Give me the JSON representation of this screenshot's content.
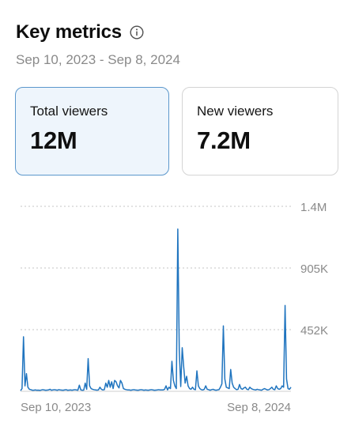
{
  "header": {
    "title": "Key metrics",
    "info_icon": "info-circle-icon",
    "date_range": "Sep 10, 2023 - Sep 8, 2024"
  },
  "cards": [
    {
      "label": "Total viewers",
      "value": "12M",
      "selected": true
    },
    {
      "label": "New viewers",
      "value": "7.2M",
      "selected": false
    }
  ],
  "colors": {
    "accent": "#1f74bf",
    "selected_card_bg": "#eef5fc",
    "selected_card_border": "#5b97cc",
    "muted_text": "#8a8a8a"
  },
  "chart_data": {
    "type": "line",
    "title": "",
    "xlabel": "",
    "ylabel": "",
    "x_tick_labels": [
      "Sep 10, 2023",
      "Sep 8, 2024"
    ],
    "y_tick_labels": [
      "452K",
      "905K",
      "1.4M"
    ],
    "y_ticks": [
      452000,
      905000,
      1357000
    ],
    "ylim": [
      0,
      1357000
    ],
    "grid": true,
    "legend": "none",
    "series": [
      {
        "color": "#1f74bf",
        "values": [
          5000,
          20000,
          400000,
          40000,
          130000,
          30000,
          15000,
          12000,
          8000,
          8000,
          10000,
          8000,
          9000,
          7000,
          9000,
          12000,
          10000,
          8000,
          9000,
          10000,
          15000,
          8000,
          10000,
          12000,
          10000,
          8000,
          12000,
          10000,
          9000,
          8000,
          10000,
          12000,
          8000,
          9000,
          10000,
          8000,
          10000,
          12000,
          10000,
          8000,
          45000,
          10000,
          8000,
          9000,
          60000,
          15000,
          240000,
          40000,
          20000,
          15000,
          12000,
          10000,
          9000,
          10000,
          30000,
          15000,
          10000,
          12000,
          60000,
          30000,
          80000,
          30000,
          70000,
          20000,
          80000,
          70000,
          40000,
          25000,
          80000,
          60000,
          20000,
          15000,
          12000,
          10000,
          10000,
          8000,
          10000,
          12000,
          10000,
          9000,
          8000,
          10000,
          12000,
          10000,
          8000,
          10000,
          9000,
          8000,
          10000,
          12000,
          10000,
          8000,
          9000,
          10000,
          12000,
          10000,
          10000,
          10000,
          15000,
          40000,
          10000,
          30000,
          20000,
          220000,
          80000,
          40000,
          20000,
          1190000,
          300000,
          35000,
          320000,
          180000,
          60000,
          110000,
          40000,
          20000,
          15000,
          30000,
          15000,
          12000,
          150000,
          40000,
          20000,
          12000,
          10000,
          15000,
          40000,
          15000,
          12000,
          8000,
          12000,
          15000,
          10000,
          8000,
          10000,
          12000,
          30000,
          55000,
          480000,
          90000,
          30000,
          25000,
          20000,
          160000,
          60000,
          30000,
          20000,
          12000,
          15000,
          50000,
          20000,
          15000,
          25000,
          30000,
          15000,
          12000,
          30000,
          20000,
          15000,
          12000,
          10000,
          15000,
          12000,
          10000,
          8000,
          15000,
          20000,
          15000,
          10000,
          12000,
          20000,
          30000,
          15000,
          12000,
          40000,
          20000,
          15000,
          20000,
          40000,
          30000,
          630000,
          90000,
          20000,
          15000,
          30000
        ]
      }
    ]
  }
}
